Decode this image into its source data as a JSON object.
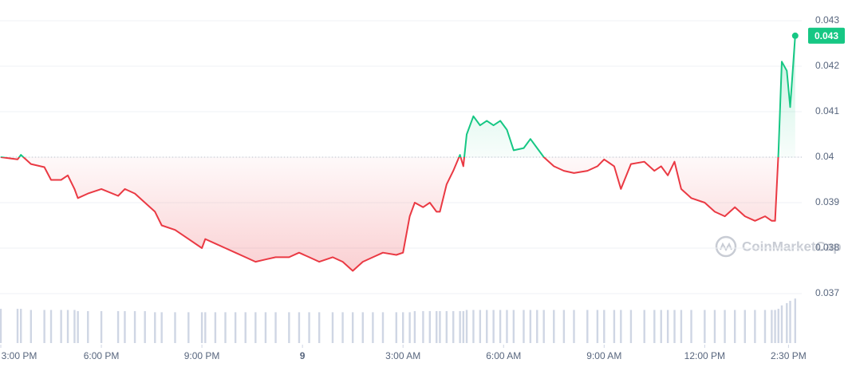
{
  "chart_data": {
    "type": "line",
    "x": [
      0,
      0.5,
      0.6,
      0.9,
      1.3,
      1.5,
      1.8,
      2.0,
      2.2,
      2.3,
      2.6,
      3.0,
      3.5,
      3.7,
      4.0,
      4.3,
      4.6,
      4.8,
      5.2,
      5.6,
      6.0,
      6.1,
      6.4,
      6.7,
      7.0,
      7.3,
      7.6,
      7.9,
      8.2,
      8.6,
      8.9,
      9.2,
      9.5,
      9.9,
      10.2,
      10.5,
      10.8,
      11.1,
      11.4,
      11.8,
      12.0,
      12.2,
      12.35,
      12.6,
      12.8,
      13.0,
      13.1,
      13.3,
      13.5,
      13.7,
      13.8,
      13.9,
      14.1,
      14.3,
      14.5,
      14.7,
      14.9,
      15.1,
      15.3,
      15.6,
      15.8,
      16.0,
      16.2,
      16.5,
      16.8,
      17.1,
      17.5,
      17.8,
      18.0,
      18.3,
      18.5,
      18.8,
      19.2,
      19.5,
      19.7,
      19.9,
      20.1,
      20.3,
      20.6,
      21.0,
      21.3,
      21.6,
      21.9,
      22.2,
      22.5,
      22.8,
      23.0,
      23.1,
      23.2,
      23.3,
      23.45,
      23.55,
      23.7
    ],
    "values": [
      0.04,
      0.03995,
      0.04005,
      0.03985,
      0.03978,
      0.0395,
      0.0395,
      0.0396,
      0.0393,
      0.0391,
      0.0392,
      0.0393,
      0.03915,
      0.0393,
      0.0392,
      0.039,
      0.0388,
      0.0385,
      0.0384,
      0.0382,
      0.038,
      0.0382,
      0.0381,
      0.038,
      0.0379,
      0.0378,
      0.0377,
      0.03775,
      0.0378,
      0.0378,
      0.0379,
      0.0378,
      0.0377,
      0.0378,
      0.0377,
      0.0375,
      0.0377,
      0.0378,
      0.0379,
      0.03785,
      0.0379,
      0.0387,
      0.039,
      0.0389,
      0.039,
      0.0388,
      0.0388,
      0.0394,
      0.0397,
      0.04005,
      0.0398,
      0.0405,
      0.0409,
      0.0407,
      0.0408,
      0.0407,
      0.0408,
      0.0406,
      0.04015,
      0.0402,
      0.0404,
      0.0402,
      0.04,
      0.0398,
      0.0397,
      0.03965,
      0.0397,
      0.0398,
      0.03995,
      0.0398,
      0.0393,
      0.03985,
      0.0399,
      0.0397,
      0.0398,
      0.0396,
      0.0399,
      0.0393,
      0.0391,
      0.039,
      0.0388,
      0.0387,
      0.0389,
      0.0387,
      0.0386,
      0.0387,
      0.0386,
      0.0386,
      0.0401,
      0.0421,
      0.0419,
      0.0411,
      0.04267
    ],
    "volume": [
      30,
      30,
      30,
      29,
      29,
      29,
      29,
      29,
      29,
      28,
      28,
      28,
      28,
      28,
      28,
      28,
      27,
      27,
      27,
      27,
      27,
      27,
      27,
      27,
      27,
      27,
      27,
      27,
      27,
      27,
      27,
      27,
      27,
      27,
      27,
      27,
      27,
      27,
      27,
      27,
      27,
      27,
      28,
      28,
      28,
      28,
      28,
      28,
      28,
      28,
      28,
      29,
      29,
      29,
      29,
      29,
      29,
      29,
      29,
      29,
      29,
      29,
      29,
      29,
      29,
      29,
      29,
      29,
      29,
      29,
      29,
      29,
      29,
      29,
      29,
      29,
      29,
      29,
      29,
      29,
      29,
      29,
      29,
      29,
      29,
      29,
      29,
      29,
      30,
      33,
      35,
      37,
      39
    ],
    "baseline": 0.04,
    "up_color": "#16c784",
    "down_color": "#ea3943",
    "volume_color": "#cfd6e4",
    "current_price_label": "0.043",
    "watermark": "CoinMarketCap",
    "xlim": [
      0,
      23.8
    ],
    "xticks": [
      {
        "value": 0,
        "label": "3:00 PM"
      },
      {
        "value": 3,
        "label": "6:00 PM"
      },
      {
        "value": 6,
        "label": "9:00 PM"
      },
      {
        "value": 9,
        "label": "9"
      },
      {
        "value": 12,
        "label": "3:00 AM"
      },
      {
        "value": 15,
        "label": "6:00 AM"
      },
      {
        "value": 18,
        "label": "9:00 AM"
      },
      {
        "value": 21,
        "label": "12:00 PM"
      },
      {
        "value": 23.5,
        "label": "2:30 PM"
      }
    ],
    "ylim": [
      0.037,
      0.043
    ],
    "yticks": [
      0.037,
      0.038,
      0.039,
      0.04,
      0.041,
      0.042,
      0.043
    ],
    "grid": true
  }
}
